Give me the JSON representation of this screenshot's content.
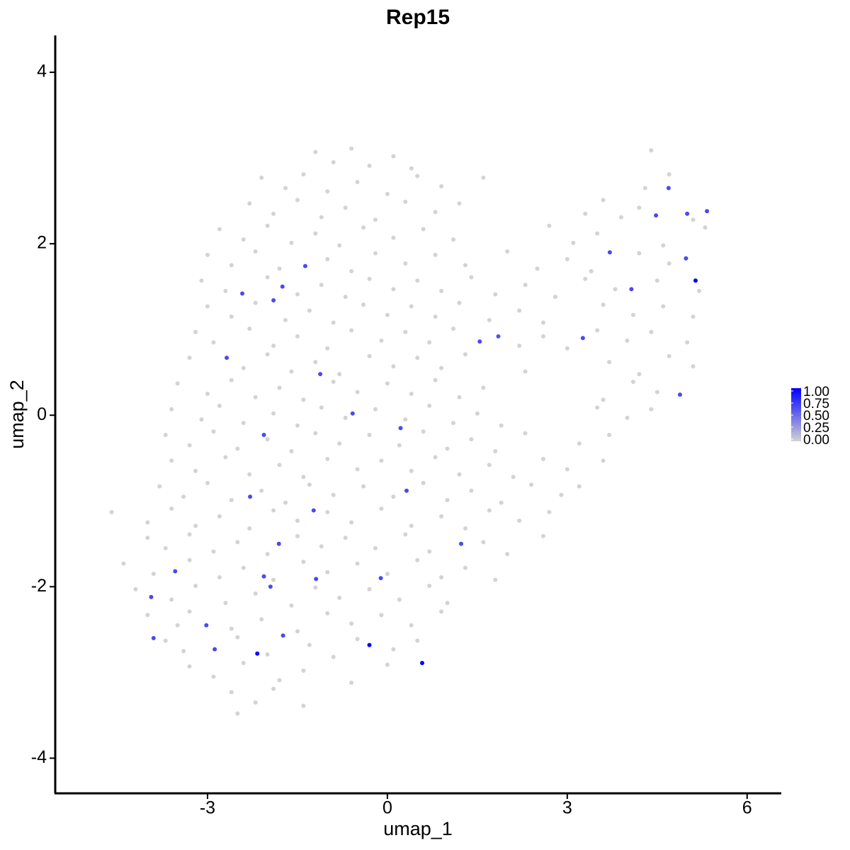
{
  "chart_data": {
    "type": "scatter",
    "title": "Rep15",
    "x_label": "umap_1",
    "y_label": "umap_2",
    "xlim": [
      -5.54,
      6.57
    ],
    "ylim": [
      -4.41,
      4.43
    ],
    "xticks": [
      -3,
      0,
      3,
      6
    ],
    "yticks": [
      -4,
      -2,
      0,
      2,
      4
    ],
    "colors": [
      "#d3d3d3",
      "#0000ff"
    ],
    "colorbar_ticks": [
      {
        "value": 0,
        "label": "0.00"
      },
      {
        "value": 0.25,
        "label": "0.25"
      },
      {
        "value": 0.5,
        "label": "0.50"
      },
      {
        "value": 0.75,
        "label": "0.75"
      },
      {
        "value": 1,
        "label": "1.00"
      }
    ],
    "x": [
      -1.2,
      -0.9,
      -0.6,
      -0.3,
      0.1,
      0.4,
      4.4,
      -2.1,
      -1.7,
      -1.4,
      -1.0,
      -0.5,
      0,
      0.5,
      0.9,
      1.6,
      4.3,
      4.7,
      -2.3,
      -1.9,
      -1.5,
      -1.1,
      -0.7,
      -0.2,
      0.3,
      0.8,
      1.2,
      3.3,
      3.6,
      3.9,
      4.2,
      5.1,
      -2.8,
      -2.4,
      -2.0,
      -1.6,
      -1.2,
      -0.8,
      -0.4,
      0.1,
      0.6,
      1.1,
      2.7,
      3.1,
      3.5,
      4.6,
      5.3,
      -3.0,
      -2.6,
      -2.2,
      -1.8,
      -1.0,
      -0.6,
      -0.2,
      0.3,
      0.8,
      1.3,
      2.0,
      2.5,
      3.0,
      3.4,
      4.2,
      4.7,
      -3.1,
      -2.7,
      -2.0,
      -1.5,
      -1.1,
      -0.7,
      -0.3,
      0.1,
      0.5,
      0.9,
      1.4,
      1.8,
      2.3,
      2.8,
      3.3,
      3.8,
      4.5,
      5.2,
      -3.0,
      -2.6,
      -2.2,
      -1.7,
      -1.3,
      -0.9,
      -0.4,
      0.0,
      0.4,
      0.8,
      1.2,
      1.7,
      2.2,
      2.6,
      3.6,
      4.1,
      4.6,
      5.1,
      -3.2,
      -2.9,
      -2.3,
      -1.9,
      -1.5,
      -1.0,
      -0.6,
      -0.1,
      0.3,
      0.7,
      1.1,
      2.2,
      2.6,
      3.0,
      3.5,
      4.0,
      4.4,
      5.0,
      -3.3,
      -2.4,
      -2.0,
      -1.6,
      -1.2,
      -0.8,
      -0.3,
      0.1,
      0.5,
      0.9,
      1.3,
      2.3,
      3.7,
      4.2,
      4.7,
      5.1,
      -3.5,
      -3.0,
      -2.6,
      -2.2,
      -1.8,
      -1.4,
      -0.9,
      -0.5,
      0.0,
      0.4,
      0.8,
      1.2,
      1.6,
      3.6,
      4.1,
      4.5,
      -3.6,
      -3.1,
      -2.8,
      -2.4,
      -1.9,
      -1.5,
      -1.1,
      -0.7,
      -0.2,
      0.3,
      0.7,
      1.1,
      1.5,
      1.9,
      3.5,
      4.0,
      4.4,
      -3.7,
      -3.3,
      -2.9,
      -2.5,
      -2.0,
      -1.6,
      -1.2,
      -0.8,
      -0.3,
      0.2,
      0.6,
      1.0,
      1.4,
      1.8,
      2.3,
      3.2,
      3.7,
      -3.6,
      -3.2,
      -2.7,
      -2.3,
      -1.8,
      -1.4,
      -1.0,
      -0.5,
      -0.1,
      0.4,
      0.8,
      1.2,
      1.7,
      2.1,
      2.6,
      3.0,
      3.6,
      -3.8,
      -3.4,
      -3.0,
      -2.6,
      -2.1,
      -1.7,
      -1.3,
      -0.9,
      -0.4,
      0.1,
      0.6,
      1.0,
      1.4,
      1.9,
      2.4,
      2.9,
      3.2,
      -4.6,
      -4.0,
      -3.6,
      -3.2,
      -2.8,
      -2.3,
      -1.9,
      -1.5,
      -1.0,
      -0.6,
      -0.1,
      0.4,
      0.9,
      1.3,
      1.7,
      2.2,
      2.7,
      -4.0,
      -3.7,
      -3.3,
      -2.9,
      -2.5,
      -2.0,
      -1.5,
      -1.1,
      -0.7,
      -0.2,
      0.3,
      0.7,
      1.6,
      2.0,
      2.6,
      -4.4,
      -3.9,
      -3.3,
      -2.8,
      -2.4,
      -1.9,
      -1.4,
      -1.0,
      -0.5,
      0.0,
      0.5,
      0.9,
      1.3,
      1.8,
      -4.2,
      -3.6,
      -3.2,
      -2.7,
      -2.2,
      -1.6,
      -1.2,
      -0.8,
      -0.3,
      0.2,
      0.7,
      1.0,
      -4.0,
      -3.5,
      -3.3,
      -2.6,
      -2.1,
      -1.5,
      -1.0,
      -0.6,
      -0.1,
      0.4,
      0.9,
      -3.7,
      -3.4,
      -2.5,
      -2.0,
      -1.3,
      -0.9,
      -0.5,
      0.1,
      0.5,
      -3.3,
      -2.9,
      -2.4,
      -1.8,
      -1.4,
      -0.6,
      0.0,
      -2.6,
      -2.2,
      -1.9,
      -1.4,
      -2.5,
      4.69,
      4.48,
      5.0,
      5.33,
      3.71,
      4.98,
      5.14,
      4.07,
      3.26,
      4.88,
      1.85,
      1.54,
      -1.37,
      -1.75,
      -2.42,
      -1.9,
      -2.68,
      -1.12,
      -0.58,
      0.22,
      -2.06,
      -2.29,
      0.32,
      -1.23,
      1.23,
      -1.81,
      -3.54,
      -2.06,
      -0.11,
      -1.19,
      -1.95,
      -3.94,
      -3.02,
      -1.74,
      -3.9,
      -2.88,
      -0.3,
      -2.17,
      0.58
    ],
    "y": [
      3.07,
      2.95,
      3.11,
      2.91,
      3.02,
      2.88,
      3.09,
      2.77,
      2.65,
      2.81,
      2.61,
      2.72,
      2.58,
      2.79,
      2.67,
      2.77,
      2.65,
      2.81,
      2.47,
      2.35,
      2.51,
      2.31,
      2.42,
      2.28,
      2.49,
      2.37,
      2.47,
      2.35,
      2.51,
      2.31,
      2.42,
      2.28,
      2.17,
      2.05,
      2.21,
      2.01,
      2.12,
      1.98,
      2.19,
      2.07,
      2.17,
      2.05,
      2.21,
      2.01,
      2.12,
      1.98,
      2.19,
      1.87,
      1.75,
      1.91,
      1.71,
      1.82,
      1.68,
      1.89,
      1.77,
      1.87,
      1.75,
      1.91,
      1.71,
      1.82,
      1.68,
      1.89,
      1.77,
      1.57,
      1.45,
      1.61,
      1.41,
      1.52,
      1.38,
      1.59,
      1.47,
      1.57,
      1.45,
      1.61,
      1.41,
      1.52,
      1.38,
      1.59,
      1.47,
      1.57,
      1.45,
      1.27,
      1.15,
      1.31,
      1.11,
      1.22,
      1.08,
      1.29,
      1.17,
      1.27,
      1.15,
      1.31,
      1.11,
      1.22,
      1.08,
      1.29,
      1.17,
      1.27,
      1.15,
      0.97,
      0.85,
      1.01,
      0.81,
      0.92,
      0.78,
      0.99,
      0.87,
      0.97,
      0.85,
      1.01,
      0.81,
      0.92,
      0.78,
      0.99,
      0.87,
      0.97,
      0.85,
      0.67,
      0.55,
      0.71,
      0.51,
      0.62,
      0.48,
      0.69,
      0.57,
      0.67,
      0.55,
      0.71,
      0.51,
      0.62,
      0.48,
      0.69,
      0.57,
      0.37,
      0.25,
      0.41,
      0.21,
      0.32,
      0.18,
      0.39,
      0.27,
      0.37,
      0.25,
      0.41,
      0.21,
      0.32,
      0.18,
      0.39,
      0.27,
      0.07,
      -0.05,
      0.11,
      -0.09,
      0.02,
      -0.12,
      0.09,
      -0.03,
      0.07,
      -0.05,
      0.11,
      -0.09,
      0.02,
      -0.12,
      0.09,
      -0.03,
      0.07,
      -0.23,
      -0.35,
      -0.19,
      -0.39,
      -0.28,
      -0.42,
      -0.21,
      -0.33,
      -0.23,
      -0.35,
      -0.19,
      -0.39,
      -0.28,
      -0.42,
      -0.21,
      -0.33,
      -0.23,
      -0.53,
      -0.65,
      -0.49,
      -0.69,
      -0.58,
      -0.72,
      -0.51,
      -0.63,
      -0.53,
      -0.65,
      -0.49,
      -0.69,
      -0.58,
      -0.72,
      -0.51,
      -0.63,
      -0.53,
      -0.83,
      -0.95,
      -0.79,
      -0.99,
      -0.88,
      -1.02,
      -0.81,
      -0.93,
      -0.83,
      -0.95,
      -0.79,
      -0.99,
      -0.88,
      -1.02,
      -0.81,
      -0.93,
      -0.83,
      -1.13,
      -1.25,
      -1.09,
      -1.29,
      -1.18,
      -1.32,
      -1.11,
      -1.23,
      -1.13,
      -1.25,
      -1.09,
      -1.29,
      -1.18,
      -1.32,
      -1.11,
      -1.23,
      -1.13,
      -1.43,
      -1.55,
      -1.39,
      -1.59,
      -1.48,
      -1.62,
      -1.41,
      -1.53,
      -1.43,
      -1.55,
      -1.39,
      -1.59,
      -1.48,
      -1.62,
      -1.41,
      -1.73,
      -1.85,
      -1.69,
      -1.89,
      -1.78,
      -1.92,
      -1.71,
      -1.83,
      -1.73,
      -1.85,
      -1.69,
      -1.89,
      -1.78,
      -1.92,
      -2.03,
      -2.15,
      -1.99,
      -2.19,
      -2.08,
      -2.22,
      -2.01,
      -2.13,
      -2.03,
      -2.15,
      -1.99,
      -2.19,
      -2.33,
      -2.45,
      -2.29,
      -2.49,
      -2.38,
      -2.52,
      -2.31,
      -2.43,
      -2.33,
      -2.45,
      -2.29,
      -2.63,
      -2.75,
      -2.59,
      -2.79,
      -2.68,
      -2.82,
      -2.61,
      -2.73,
      -2.63,
      -2.93,
      -3.05,
      -2.89,
      -3.09,
      -2.98,
      -3.12,
      -2.91,
      -3.23,
      -3.35,
      -3.19,
      -3.39,
      -3.48,
      2.65,
      2.33,
      2.35,
      2.38,
      1.9,
      1.83,
      1.57,
      1.47,
      0.9,
      0.24,
      0.92,
      0.86,
      1.74,
      1.5,
      1.42,
      1.34,
      0.67,
      0.48,
      0.02,
      -0.15,
      -0.23,
      -0.95,
      -0.88,
      -1.11,
      -1.5,
      -1.5,
      -1.82,
      -1.88,
      -1.9,
      -1.91,
      -2.0,
      -2.12,
      -2.45,
      -2.57,
      -2.6,
      -2.73,
      -2.68,
      -2.78,
      -2.89
    ],
    "values": [
      0,
      0,
      0,
      0,
      0,
      0,
      0,
      0,
      0,
      0,
      0,
      0,
      0,
      0,
      0,
      0,
      0,
      0,
      0,
      0,
      0,
      0,
      0,
      0,
      0,
      0,
      0,
      0,
      0,
      0,
      0,
      0,
      0,
      0,
      0,
      0,
      0,
      0,
      0,
      0,
      0,
      0,
      0,
      0,
      0,
      0,
      0,
      0,
      0,
      0,
      0,
      0,
      0,
      0,
      0,
      0,
      0,
      0,
      0,
      0,
      0,
      0,
      0,
      0,
      0,
      0,
      0,
      0,
      0,
      0,
      0,
      0,
      0,
      0,
      0,
      0,
      0,
      0,
      0,
      0,
      0,
      0,
      0,
      0,
      0,
      0,
      0,
      0,
      0,
      0,
      0,
      0,
      0,
      0,
      0,
      0,
      0,
      0,
      0,
      0,
      0,
      0,
      0,
      0,
      0,
      0,
      0,
      0,
      0,
      0,
      0,
      0,
      0,
      0,
      0,
      0,
      0,
      0,
      0,
      0,
      0,
      0,
      0,
      0,
      0,
      0,
      0,
      0,
      0,
      0,
      0,
      0,
      0,
      0,
      0,
      0,
      0,
      0,
      0,
      0,
      0,
      0,
      0,
      0,
      0,
      0,
      0,
      0,
      0,
      0,
      0,
      0,
      0,
      0,
      0,
      0,
      0,
      0,
      0,
      0,
      0,
      0,
      0,
      0,
      0,
      0,
      0,
      0,
      0,
      0,
      0,
      0,
      0,
      0,
      0,
      0,
      0,
      0,
      0,
      0,
      0,
      0,
      0,
      0,
      0,
      0,
      0,
      0,
      0,
      0,
      0,
      0,
      0,
      0,
      0,
      0,
      0,
      0,
      0,
      0,
      0,
      0,
      0,
      0,
      0,
      0,
      0,
      0,
      0,
      0,
      0,
      0,
      0,
      0,
      0,
      0,
      0,
      0,
      0,
      0,
      0,
      0,
      0,
      0,
      0,
      0,
      0,
      0,
      0,
      0,
      0,
      0,
      0,
      0,
      0,
      0,
      0,
      0,
      0,
      0,
      0,
      0,
      0,
      0,
      0,
      0,
      0,
      0,
      0,
      0,
      0,
      0,
      0,
      0,
      0,
      0,
      0,
      0,
      0,
      0,
      0,
      0,
      0,
      0,
      0,
      0,
      0,
      0,
      0,
      0,
      0,
      0,
      0,
      0,
      0,
      0,
      0,
      0,
      0,
      0,
      0,
      0,
      0,
      0,
      0,
      0,
      0,
      0,
      0,
      0,
      0,
      0,
      0,
      0,
      0,
      0,
      0,
      0,
      0,
      0,
      0,
      0,
      0,
      0,
      0,
      0,
      0,
      0.65,
      0.65,
      0.65,
      0.65,
      0.65,
      0.65,
      1,
      0.65,
      0.65,
      0.65,
      0.6,
      0.65,
      0.65,
      0.65,
      0.65,
      0.65,
      0.65,
      0.65,
      0.65,
      0.65,
      0.65,
      0.65,
      0.65,
      0.65,
      0.65,
      0.65,
      0.65,
      0.65,
      0.65,
      0.65,
      0.65,
      0.65,
      0.65,
      0.65,
      0.65,
      0.65,
      1,
      1,
      1
    ]
  }
}
